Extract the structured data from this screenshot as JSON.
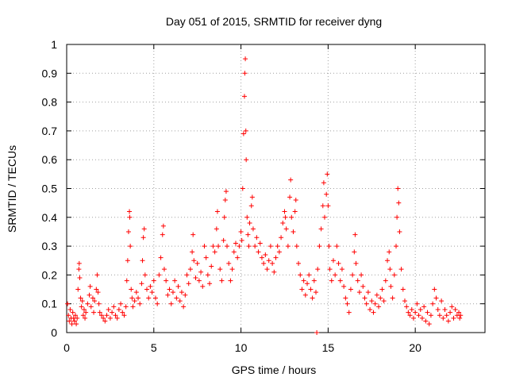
{
  "chart_data": {
    "type": "scatter",
    "title": "Day 051 of 2015, SRMTID for receiver dyng",
    "xlabel": "GPS time / hours",
    "ylabel": "SRMTID / TECUs",
    "xlim": [
      0,
      24
    ],
    "ylim": [
      0,
      1
    ],
    "xticks": [
      0,
      5,
      10,
      15,
      20
    ],
    "xtick_labels": [
      "0",
      "5",
      "10",
      "15",
      "20"
    ],
    "yticks": [
      0,
      0.1,
      0.2,
      0.3,
      0.4,
      0.5,
      0.6,
      0.7,
      0.8,
      0.9,
      1
    ],
    "ytick_labels": [
      "0",
      "0.1",
      "0.2",
      "0.3",
      "0.4",
      "0.5",
      "0.6",
      "0.7",
      "0.8",
      "0.9",
      "1"
    ],
    "grid": true,
    "marker": "+",
    "series_color": "#ff0000",
    "series": [
      {
        "name": "SRMTID",
        "points": [
          [
            0.05,
            0.1
          ],
          [
            0.1,
            0.06
          ],
          [
            0.15,
            0.04
          ],
          [
            0.2,
            0.08
          ],
          [
            0.25,
            0.05
          ],
          [
            0.3,
            0.03
          ],
          [
            0.35,
            0.07
          ],
          [
            0.4,
            0.05
          ],
          [
            0.45,
            0.04
          ],
          [
            0.5,
            0.06
          ],
          [
            0.55,
            0.03
          ],
          [
            0.6,
            0.05
          ],
          [
            0.65,
            0.15
          ],
          [
            0.7,
            0.22
          ],
          [
            0.72,
            0.24
          ],
          [
            0.75,
            0.19
          ],
          [
            0.8,
            0.12
          ],
          [
            0.85,
            0.09
          ],
          [
            0.9,
            0.11
          ],
          [
            0.95,
            0.06
          ],
          [
            1.0,
            0.08
          ],
          [
            1.05,
            0.05
          ],
          [
            1.1,
            0.07
          ],
          [
            1.2,
            0.1
          ],
          [
            1.3,
            0.13
          ],
          [
            1.35,
            0.16
          ],
          [
            1.4,
            0.09
          ],
          [
            1.5,
            0.12
          ],
          [
            1.55,
            0.07
          ],
          [
            1.6,
            0.11
          ],
          [
            1.7,
            0.15
          ],
          [
            1.75,
            0.2
          ],
          [
            1.8,
            0.14
          ],
          [
            1.85,
            0.1
          ],
          [
            1.9,
            0.07
          ],
          [
            2.0,
            0.06
          ],
          [
            2.1,
            0.05
          ],
          [
            2.2,
            0.04
          ],
          [
            2.3,
            0.06
          ],
          [
            2.4,
            0.08
          ],
          [
            2.5,
            0.05
          ],
          [
            2.6,
            0.07
          ],
          [
            2.7,
            0.09
          ],
          [
            2.8,
            0.06
          ],
          [
            2.9,
            0.05
          ],
          [
            3.0,
            0.08
          ],
          [
            3.1,
            0.1
          ],
          [
            3.2,
            0.07
          ],
          [
            3.3,
            0.06
          ],
          [
            3.4,
            0.09
          ],
          [
            3.45,
            0.18
          ],
          [
            3.5,
            0.25
          ],
          [
            3.55,
            0.35
          ],
          [
            3.6,
            0.42
          ],
          [
            3.62,
            0.4
          ],
          [
            3.65,
            0.3
          ],
          [
            3.7,
            0.15
          ],
          [
            3.75,
            0.12
          ],
          [
            3.8,
            0.09
          ],
          [
            3.9,
            0.11
          ],
          [
            4.0,
            0.14
          ],
          [
            4.1,
            0.12
          ],
          [
            4.2,
            0.1
          ],
          [
            4.3,
            0.17
          ],
          [
            4.35,
            0.25
          ],
          [
            4.4,
            0.33
          ],
          [
            4.45,
            0.36
          ],
          [
            4.5,
            0.2
          ],
          [
            4.6,
            0.15
          ],
          [
            4.7,
            0.12
          ],
          [
            4.8,
            0.16
          ],
          [
            4.9,
            0.14
          ],
          [
            5.0,
            0.18
          ],
          [
            5.1,
            0.12
          ],
          [
            5.2,
            0.1
          ],
          [
            5.3,
            0.2
          ],
          [
            5.4,
            0.26
          ],
          [
            5.5,
            0.34
          ],
          [
            5.55,
            0.37
          ],
          [
            5.6,
            0.22
          ],
          [
            5.7,
            0.18
          ],
          [
            5.8,
            0.13
          ],
          [
            5.9,
            0.15
          ],
          [
            6.0,
            0.1
          ],
          [
            6.1,
            0.14
          ],
          [
            6.2,
            0.18
          ],
          [
            6.3,
            0.12
          ],
          [
            6.4,
            0.16
          ],
          [
            6.5,
            0.11
          ],
          [
            6.6,
            0.14
          ],
          [
            6.7,
            0.09
          ],
          [
            6.8,
            0.13
          ],
          [
            6.9,
            0.2
          ],
          [
            7.0,
            0.17
          ],
          [
            7.1,
            0.22
          ],
          [
            7.2,
            0.28
          ],
          [
            7.25,
            0.34
          ],
          [
            7.3,
            0.25
          ],
          [
            7.4,
            0.19
          ],
          [
            7.5,
            0.24
          ],
          [
            7.6,
            0.18
          ],
          [
            7.7,
            0.21
          ],
          [
            7.8,
            0.16
          ],
          [
            7.9,
            0.3
          ],
          [
            8.0,
            0.26
          ],
          [
            8.1,
            0.2
          ],
          [
            8.2,
            0.17
          ],
          [
            8.3,
            0.23
          ],
          [
            8.4,
            0.3
          ],
          [
            8.5,
            0.28
          ],
          [
            8.6,
            0.36
          ],
          [
            8.65,
            0.42
          ],
          [
            8.7,
            0.3
          ],
          [
            8.8,
            0.22
          ],
          [
            8.9,
            0.18
          ],
          [
            9.0,
            0.32
          ],
          [
            9.05,
            0.4
          ],
          [
            9.1,
            0.46
          ],
          [
            9.15,
            0.49
          ],
          [
            9.2,
            0.3
          ],
          [
            9.3,
            0.24
          ],
          [
            9.4,
            0.18
          ],
          [
            9.5,
            0.22
          ],
          [
            9.6,
            0.28
          ],
          [
            9.7,
            0.31
          ],
          [
            9.8,
            0.26
          ],
          [
            9.9,
            0.3
          ],
          [
            10.0,
            0.35
          ],
          [
            10.05,
            0.32
          ],
          [
            10.1,
            0.5
          ],
          [
            10.15,
            0.69
          ],
          [
            10.2,
            0.82
          ],
          [
            10.22,
            0.9
          ],
          [
            10.25,
            0.95
          ],
          [
            10.28,
            0.7
          ],
          [
            10.3,
            0.6
          ],
          [
            10.35,
            0.4
          ],
          [
            10.4,
            0.34
          ],
          [
            10.45,
            0.3
          ],
          [
            10.5,
            0.38
          ],
          [
            10.6,
            0.44
          ],
          [
            10.65,
            0.47
          ],
          [
            10.7,
            0.36
          ],
          [
            10.8,
            0.3
          ],
          [
            10.9,
            0.33
          ],
          [
            11.0,
            0.28
          ],
          [
            11.1,
            0.31
          ],
          [
            11.2,
            0.26
          ],
          [
            11.3,
            0.24
          ],
          [
            11.4,
            0.27
          ],
          [
            11.5,
            0.22
          ],
          [
            11.6,
            0.25
          ],
          [
            11.7,
            0.3
          ],
          [
            11.8,
            0.24
          ],
          [
            11.9,
            0.21
          ],
          [
            12.0,
            0.26
          ],
          [
            12.1,
            0.3
          ],
          [
            12.2,
            0.28
          ],
          [
            12.3,
            0.33
          ],
          [
            12.4,
            0.38
          ],
          [
            12.5,
            0.42
          ],
          [
            12.55,
            0.4
          ],
          [
            12.6,
            0.36
          ],
          [
            12.7,
            0.3
          ],
          [
            12.8,
            0.47
          ],
          [
            12.85,
            0.53
          ],
          [
            12.9,
            0.4
          ],
          [
            13.0,
            0.35
          ],
          [
            13.1,
            0.42
          ],
          [
            13.15,
            0.46
          ],
          [
            13.2,
            0.3
          ],
          [
            13.3,
            0.24
          ],
          [
            13.4,
            0.2
          ],
          [
            13.5,
            0.15
          ],
          [
            13.6,
            0.18
          ],
          [
            13.7,
            0.13
          ],
          [
            13.8,
            0.17
          ],
          [
            13.9,
            0.2
          ],
          [
            14.0,
            0.15
          ],
          [
            14.1,
            0.12
          ],
          [
            14.2,
            0.18
          ],
          [
            14.3,
            0.14
          ],
          [
            14.35,
            0.0
          ],
          [
            14.4,
            0.22
          ],
          [
            14.5,
            0.3
          ],
          [
            14.6,
            0.36
          ],
          [
            14.7,
            0.44
          ],
          [
            14.75,
            0.52
          ],
          [
            14.8,
            0.4
          ],
          [
            14.9,
            0.48
          ],
          [
            14.95,
            0.55
          ],
          [
            15.0,
            0.44
          ],
          [
            15.05,
            0.3
          ],
          [
            15.1,
            0.22
          ],
          [
            15.2,
            0.18
          ],
          [
            15.3,
            0.25
          ],
          [
            15.4,
            0.2
          ],
          [
            15.5,
            0.3
          ],
          [
            15.6,
            0.24
          ],
          [
            15.7,
            0.18
          ],
          [
            15.8,
            0.22
          ],
          [
            15.9,
            0.16
          ],
          [
            16.0,
            0.12
          ],
          [
            16.1,
            0.1
          ],
          [
            16.2,
            0.07
          ],
          [
            16.3,
            0.15
          ],
          [
            16.4,
            0.2
          ],
          [
            16.5,
            0.28
          ],
          [
            16.55,
            0.34
          ],
          [
            16.6,
            0.24
          ],
          [
            16.7,
            0.18
          ],
          [
            16.8,
            0.14
          ],
          [
            16.9,
            0.2
          ],
          [
            17.0,
            0.16
          ],
          [
            17.1,
            0.12
          ],
          [
            17.2,
            0.1
          ],
          [
            17.3,
            0.14
          ],
          [
            17.4,
            0.08
          ],
          [
            17.5,
            0.11
          ],
          [
            17.6,
            0.07
          ],
          [
            17.7,
            0.1
          ],
          [
            17.8,
            0.13
          ],
          [
            17.9,
            0.09
          ],
          [
            18.0,
            0.12
          ],
          [
            18.1,
            0.15
          ],
          [
            18.2,
            0.11
          ],
          [
            18.3,
            0.18
          ],
          [
            18.4,
            0.25
          ],
          [
            18.5,
            0.28
          ],
          [
            18.55,
            0.22
          ],
          [
            18.6,
            0.16
          ],
          [
            18.7,
            0.12
          ],
          [
            18.8,
            0.2
          ],
          [
            18.9,
            0.3
          ],
          [
            18.95,
            0.4
          ],
          [
            19.0,
            0.5
          ],
          [
            19.05,
            0.45
          ],
          [
            19.1,
            0.35
          ],
          [
            19.2,
            0.22
          ],
          [
            19.3,
            0.15
          ],
          [
            19.4,
            0.11
          ],
          [
            19.5,
            0.09
          ],
          [
            19.6,
            0.07
          ],
          [
            19.7,
            0.06
          ],
          [
            19.8,
            0.08
          ],
          [
            19.9,
            0.05
          ],
          [
            20.0,
            0.07
          ],
          [
            20.1,
            0.1
          ],
          [
            20.2,
            0.06
          ],
          [
            20.3,
            0.08
          ],
          [
            20.4,
            0.05
          ],
          [
            20.5,
            0.09
          ],
          [
            20.6,
            0.04
          ],
          [
            20.7,
            0.07
          ],
          [
            20.8,
            0.03
          ],
          [
            20.9,
            0.06
          ],
          [
            21.0,
            0.1
          ],
          [
            21.1,
            0.15
          ],
          [
            21.2,
            0.12
          ],
          [
            21.3,
            0.08
          ],
          [
            21.4,
            0.06
          ],
          [
            21.5,
            0.11
          ],
          [
            21.6,
            0.05
          ],
          [
            21.7,
            0.08
          ],
          [
            21.8,
            0.06
          ],
          [
            21.9,
            0.04
          ],
          [
            22.0,
            0.07
          ],
          [
            22.1,
            0.09
          ],
          [
            22.2,
            0.05
          ],
          [
            22.3,
            0.08
          ],
          [
            22.4,
            0.06
          ],
          [
            22.5,
            0.07
          ],
          [
            22.55,
            0.05
          ],
          [
            22.6,
            0.06
          ]
        ]
      }
    ]
  }
}
